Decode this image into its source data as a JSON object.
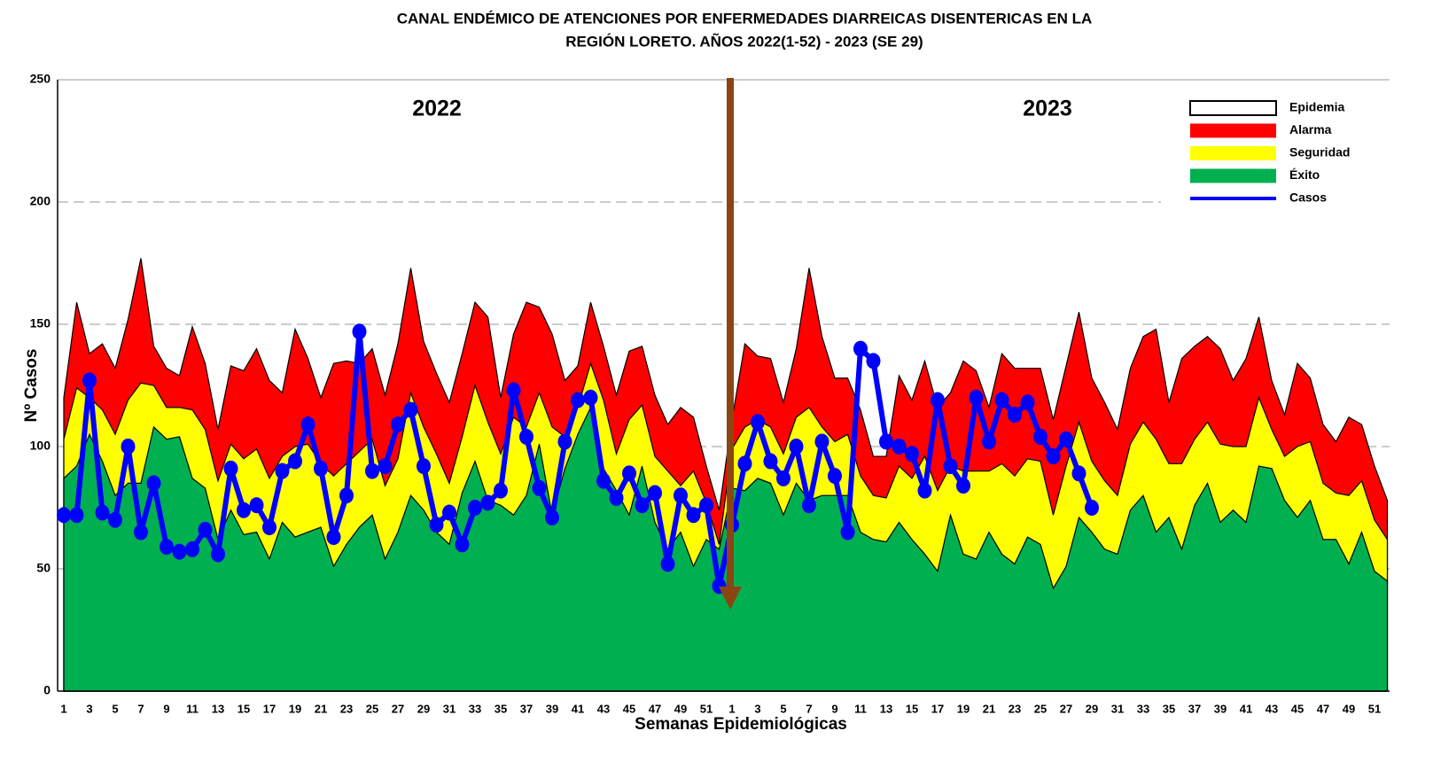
{
  "chart_data": {
    "type": "endemic-channel",
    "title": [
      "CANAL ENDÉMICO DE ATENCIONES POR ENFERMEDADES DIARREICAS DISENTERICAS EN LA",
      "REGIÓN LORETO.  AÑOS 2022(1-52) - 2023 (SE 29)"
    ],
    "y_label": "Nº Casos",
    "x_label": "Semanas Epidemiológicas",
    "annotations": [
      "2022",
      "2023"
    ],
    "ylim": [
      0,
      250
    ],
    "yticks": [
      0,
      50,
      100,
      150,
      200,
      250
    ],
    "grid": true,
    "legend": "upper right",
    "categories": [
      "1",
      null,
      "3",
      null,
      "5",
      null,
      "7",
      null,
      "9",
      null,
      "11",
      null,
      "13",
      null,
      "15",
      null,
      "17",
      null,
      "19",
      null,
      "21",
      null,
      "23",
      null,
      "25",
      null,
      "27",
      null,
      "29",
      null,
      "31",
      null,
      "33",
      null,
      "35",
      null,
      "37",
      null,
      "39",
      null,
      "41",
      null,
      "43",
      null,
      "45",
      null,
      "47",
      null,
      "49",
      null,
      "51",
      null,
      "1",
      null,
      "3",
      null,
      "5",
      null,
      "7",
      null,
      "9",
      null,
      "11",
      null,
      "13",
      null,
      "15",
      null,
      "17",
      null,
      "19",
      null,
      "21",
      null,
      "23",
      null,
      "25",
      null,
      "27",
      null,
      "29",
      null,
      "31",
      null,
      "33",
      null,
      "35",
      null,
      "37",
      null,
      "39",
      null,
      "41",
      null,
      "43",
      null,
      "45",
      null,
      "47",
      null,
      "49",
      null,
      "51",
      null
    ],
    "series": [
      {
        "name": "Epidemia",
        "color": "#ffffff"
      },
      {
        "name": "Alarma",
        "color": "#ff0000",
        "values": [
          120,
          159,
          138,
          142,
          132,
          152,
          177,
          141,
          132,
          129,
          149,
          134,
          107,
          133,
          131,
          140,
          127,
          122,
          148,
          136,
          120,
          134,
          135,
          134,
          140,
          121,
          142,
          173,
          143,
          130,
          118,
          138,
          159,
          153,
          120,
          146,
          159,
          157,
          146,
          127,
          133,
          159,
          141,
          121,
          139,
          141,
          121,
          109,
          116,
          112,
          92,
          74,
          111,
          142,
          137,
          136,
          118,
          140,
          173,
          145,
          128,
          128,
          115,
          96,
          96,
          129,
          119,
          135,
          116,
          122,
          135,
          131,
          116,
          138,
          132,
          132,
          132,
          111,
          133,
          155,
          128,
          118,
          107,
          132,
          145,
          148,
          118,
          136,
          141,
          145,
          140,
          127,
          136,
          153,
          127,
          113,
          134,
          128,
          109,
          102,
          112,
          109,
          92,
          78
        ]
      },
      {
        "name": "Seguridad",
        "color": "#ffff00",
        "values": [
          103,
          124,
          120,
          115,
          105,
          119,
          126,
          125,
          116,
          116,
          115,
          107,
          86,
          101,
          95,
          99,
          87,
          96,
          100,
          101,
          93,
          88,
          93,
          98,
          103,
          84,
          95,
          122,
          108,
          97,
          85,
          104,
          125,
          110,
          97,
          112,
          108,
          122,
          108,
          104,
          116,
          134,
          119,
          97,
          111,
          117,
          96,
          90,
          84,
          90,
          77,
          60,
          99,
          108,
          111,
          108,
          97,
          112,
          116,
          108,
          102,
          105,
          88,
          80,
          79,
          92,
          87,
          96,
          82,
          92,
          90,
          90,
          90,
          93,
          88,
          95,
          94,
          72,
          92,
          110,
          94,
          86,
          80,
          101,
          110,
          103,
          93,
          93,
          103,
          110,
          101,
          100,
          100,
          120,
          107,
          96,
          100,
          102,
          85,
          81,
          80,
          86,
          70,
          62
        ]
      },
      {
        "name": "Éxito",
        "color": "#00b050",
        "values": [
          87,
          92,
          105,
          94,
          80,
          85,
          85,
          108,
          103,
          104,
          87,
          83,
          62,
          74,
          64,
          65,
          54,
          69,
          63,
          65,
          67,
          51,
          60,
          67,
          72,
          54,
          65,
          80,
          74,
          65,
          60,
          81,
          94,
          78,
          76,
          72,
          80,
          101,
          72,
          91,
          105,
          116,
          91,
          82,
          72,
          92,
          69,
          58,
          65,
          51,
          62,
          58,
          83,
          82,
          87,
          85,
          72,
          85,
          78,
          80,
          80,
          80,
          65,
          62,
          61,
          69,
          62,
          56,
          49,
          72,
          56,
          54,
          65,
          56,
          52,
          63,
          60,
          42,
          51,
          71,
          65,
          58,
          56,
          74,
          80,
          65,
          71,
          58,
          76,
          85,
          69,
          74,
          69,
          92,
          91,
          78,
          71,
          78,
          62,
          62,
          52,
          65,
          49,
          45
        ]
      },
      {
        "name": "Casos",
        "color": "#0000ff",
        "line": true,
        "values": [
          72,
          72,
          127,
          73,
          70,
          100,
          65,
          85,
          59,
          57,
          58,
          66,
          56,
          91,
          74,
          76,
          67,
          90,
          94,
          109,
          91,
          63,
          80,
          147,
          90,
          92,
          109,
          115,
          92,
          68,
          73,
          60,
          75,
          77,
          82,
          123,
          104,
          83,
          71,
          102,
          119,
          120,
          86,
          79,
          89,
          76,
          81,
          52,
          80,
          72,
          76,
          43,
          68,
          93,
          110,
          94,
          87,
          100,
          76,
          102,
          88,
          65,
          140,
          135,
          102,
          100,
          97,
          82,
          119,
          92,
          84,
          120,
          102,
          119,
          113,
          118,
          104,
          96,
          103,
          89,
          75,
          null,
          null,
          null,
          null,
          null,
          null,
          null,
          null,
          null,
          null,
          null,
          null,
          null,
          null,
          null,
          null,
          null,
          null,
          null,
          null,
          null,
          null,
          null
        ]
      }
    ]
  }
}
